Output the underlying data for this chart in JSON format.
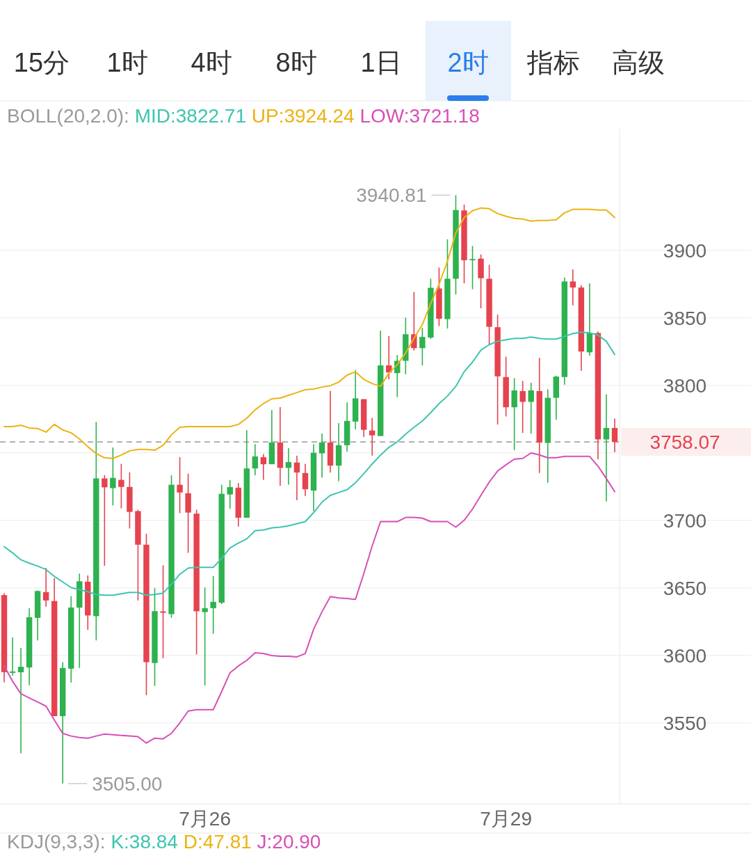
{
  "chart_data": {
    "type": "candlestick",
    "categories": [
      null,
      null,
      null,
      null,
      null,
      null,
      null,
      null,
      null,
      null,
      null,
      null,
      null,
      null,
      null,
      null,
      null,
      null,
      null,
      null,
      null,
      null,
      null,
      null,
      "7月26",
      null,
      null,
      null,
      null,
      null,
      null,
      null,
      null,
      null,
      null,
      null,
      null,
      null,
      null,
      null,
      null,
      null,
      null,
      null,
      null,
      null,
      null,
      null,
      null,
      null,
      null,
      null,
      null,
      null,
      null,
      null,
      null,
      null,
      null,
      null,
      "7月29",
      null,
      null,
      null,
      null,
      null,
      null,
      null,
      null,
      null,
      null,
      null,
      null,
      null
    ],
    "ohlc": [
      [
        3644.6,
        3646,
        3580,
        3587.5
      ],
      [
        3587,
        3613.2,
        3585,
        3588
      ],
      [
        3587.4,
        3605.4,
        3527.4,
        3591.5
      ],
      [
        3591,
        3634.9,
        3577.7,
        3628.2
      ],
      [
        3627.7,
        3648,
        3611,
        3647.6
      ],
      [
        3646.8,
        3664.7,
        3636,
        3640.6
      ],
      [
        3640.2,
        3657.1,
        3554.9,
        3554.9
      ],
      [
        3554.9,
        3594.9,
        3505,
        3590.6
      ],
      [
        3590.1,
        3643.8,
        3579.8,
        3635.4
      ],
      [
        3635.3,
        3660.5,
        3590.6,
        3654.8
      ],
      [
        3654.5,
        3659.2,
        3618.8,
        3629.5
      ],
      [
        3629,
        3772.8,
        3611,
        3731
      ],
      [
        3731,
        3733.5,
        3666.3,
        3724.4
      ],
      [
        3723.8,
        3753.9,
        3711,
        3731.4
      ],
      [
        3729.9,
        3741.8,
        3708.8,
        3724.7
      ],
      [
        3724.7,
        3735.5,
        3693.9,
        3706.2
      ],
      [
        3706.8,
        3707.8,
        3640.6,
        3681.9
      ],
      [
        3681.9,
        3690,
        3570.5,
        3594.9
      ],
      [
        3594.3,
        3649.7,
        3577.4,
        3632.7
      ],
      [
        3632.5,
        3666.7,
        3597.8,
        3631.5
      ],
      [
        3630.5,
        3733.3,
        3627.8,
        3726.3
      ],
      [
        3726.3,
        3746.8,
        3705.3,
        3720.6
      ],
      [
        3720,
        3734.5,
        3675.9,
        3705.7
      ],
      [
        3704.9,
        3707.8,
        3600.6,
        3632.6
      ],
      [
        3632,
        3650.2,
        3577.7,
        3634.9
      ],
      [
        3634.9,
        3658.7,
        3616,
        3639.6
      ],
      [
        3639,
        3726.3,
        3638,
        3719.6
      ],
      [
        3719.1,
        3729.8,
        3708.5,
        3724.6
      ],
      [
        3724.1,
        3727.6,
        3695.3,
        3701.9
      ],
      [
        3701.9,
        3766.7,
        3701.9,
        3738.4
      ],
      [
        3738.4,
        3756.4,
        3733.3,
        3747.3
      ],
      [
        3746.7,
        3749,
        3729.9,
        3741.5
      ],
      [
        3741.5,
        3781.6,
        3741.5,
        3757.6
      ],
      [
        3757.6,
        3783.8,
        3725.6,
        3738.8
      ],
      [
        3738.8,
        3753.4,
        3726.4,
        3743.1
      ],
      [
        3742.8,
        3747.9,
        3714.9,
        3735.4
      ],
      [
        3735,
        3741.8,
        3718,
        3723
      ],
      [
        3722,
        3756.4,
        3706.7,
        3750
      ],
      [
        3749.6,
        3764.2,
        3731.6,
        3757.6
      ],
      [
        3757.6,
        3795.8,
        3735.4,
        3740.5
      ],
      [
        3740.5,
        3771.9,
        3728.9,
        3755.6
      ],
      [
        3755.6,
        3787.3,
        3750.8,
        3773.6
      ],
      [
        3773.1,
        3811.2,
        3767.5,
        3790.3
      ],
      [
        3789.7,
        3789.7,
        3761.6,
        3767
      ],
      [
        3766.5,
        3775.8,
        3747.9,
        3762.9
      ],
      [
        3762.4,
        3840.4,
        3762.4,
        3814.7
      ],
      [
        3814.7,
        3836.4,
        3804.4,
        3809.5
      ],
      [
        3809,
        3822.4,
        3791.2,
        3818.1
      ],
      [
        3818.1,
        3850.1,
        3808.2,
        3837.8
      ],
      [
        3837.8,
        3869,
        3825.8,
        3827.5
      ],
      [
        3827.5,
        3842.6,
        3814.7,
        3835.8
      ],
      [
        3835.3,
        3878.9,
        3834.4,
        3872.2
      ],
      [
        3871.7,
        3887.2,
        3843.8,
        3849.3
      ],
      [
        3849,
        3908.1,
        3842,
        3878.9
      ],
      [
        3878.9,
        3940.81,
        3867.3,
        3929.8
      ],
      [
        3929.5,
        3933.8,
        3875.5,
        3892.6
      ],
      [
        3892.6,
        3903.2,
        3871.2,
        3893.5
      ],
      [
        3893.8,
        3896.9,
        3857,
        3879.3
      ],
      [
        3878.9,
        3889.2,
        3830,
        3843.3
      ],
      [
        3843,
        3852.3,
        3770.9,
        3806.6
      ],
      [
        3806.1,
        3821.1,
        3776.9,
        3783.7
      ],
      [
        3783.7,
        3805.3,
        3752,
        3796.2
      ],
      [
        3795.7,
        3803.2,
        3764.7,
        3787.7
      ],
      [
        3787.7,
        3801.8,
        3764.2,
        3796.2
      ],
      [
        3795.7,
        3820.3,
        3735,
        3757.6
      ],
      [
        3757.3,
        3797,
        3727.8,
        3790.7
      ],
      [
        3790.7,
        3807,
        3774.4,
        3806.4
      ],
      [
        3806.1,
        3879.8,
        3800.5,
        3876.9
      ],
      [
        3876.9,
        3885.8,
        3859.2,
        3872.4
      ],
      [
        3872.4,
        3874.1,
        3810.7,
        3825
      ],
      [
        3824.4,
        3875.5,
        3822,
        3838.7
      ],
      [
        3838.7,
        3839.9,
        3745.3,
        3759.9
      ],
      [
        3759.9,
        3793.2,
        3714,
        3768.4
      ],
      [
        3768.4,
        3775.3,
        3750.5,
        3758.07
      ]
    ],
    "colors": [
      "#e5434f",
      "#2eb24f",
      "#2eb24f",
      "#2eb24f",
      "#2eb24f",
      "#e5434f",
      "#e5434f",
      "#2eb24f",
      "#2eb24f",
      "#2eb24f",
      "#e5434f",
      "#2eb24f",
      "#e5434f",
      "#2eb24f",
      "#e5434f",
      "#e5434f",
      "#e5434f",
      "#e5434f",
      "#2eb24f",
      "#e5434f",
      "#2eb24f",
      "#e5434f",
      "#e5434f",
      "#e5434f",
      "#2eb24f",
      "#2eb24f",
      "#2eb24f",
      "#2eb24f",
      "#e5434f",
      "#2eb24f",
      "#2eb24f",
      "#e5434f",
      "#2eb24f",
      "#e5434f",
      "#2eb24f",
      "#e5434f",
      "#e5434f",
      "#2eb24f",
      "#2eb24f",
      "#e5434f",
      "#2eb24f",
      "#2eb24f",
      "#2eb24f",
      "#e5434f",
      "#e5434f",
      "#2eb24f",
      "#e5434f",
      "#2eb24f",
      "#2eb24f",
      "#e5434f",
      "#2eb24f",
      "#2eb24f",
      "#e5434f",
      "#2eb24f",
      "#2eb24f",
      "#e5434f",
      "#2eb24f",
      "#e5434f",
      "#e5434f",
      "#e5434f",
      "#e5434f",
      "#2eb24f",
      "#e5434f",
      "#2eb24f",
      "#e5434f",
      "#2eb24f",
      "#2eb24f",
      "#2eb24f",
      "#e5434f",
      "#e5434f",
      "#2eb24f",
      "#e5434f",
      "#2eb24f",
      "#e5434f"
    ],
    "series": [
      {
        "name": "MID:3822.71",
        "type": "line",
        "color": "#3cc5b0",
        "values": [
          3680.5,
          3675.9,
          3670.7,
          3668.2,
          3666.1,
          3663.5,
          3658.4,
          3654.3,
          3650.2,
          3648.6,
          3647.1,
          3645.0,
          3644.5,
          3644.5,
          3645.5,
          3646.6,
          3646.6,
          3644.5,
          3645.0,
          3646.1,
          3652.7,
          3660.0,
          3664.6,
          3665.1,
          3665.1,
          3665.1,
          3671.8,
          3679.5,
          3683.1,
          3686.2,
          3692.3,
          3692.8,
          3694.4,
          3694.9,
          3695.9,
          3697.5,
          3699.0,
          3705.7,
          3713.4,
          3718.5,
          3720.6,
          3722.6,
          3727.8,
          3734.5,
          3741.7,
          3748.3,
          3754.0,
          3758.1,
          3763.8,
          3768.9,
          3773.5,
          3779.7,
          3786.4,
          3792.0,
          3799.2,
          3810.0,
          3817.2,
          3826.0,
          3830.1,
          3832.6,
          3833.7,
          3834.7,
          3834.7,
          3835.7,
          3834.7,
          3834.2,
          3834.2,
          3836.2,
          3838.3,
          3839.3,
          3838.8,
          3837.2,
          3832.6,
          3822.71
        ]
      },
      {
        "name": "UP:3924.24",
        "type": "line",
        "color": "#ecb312",
        "values": [
          3769.4,
          3769.4,
          3770.4,
          3768.4,
          3767.9,
          3765.3,
          3771.0,
          3766.9,
          3764.8,
          3760.2,
          3754.5,
          3749.4,
          3746.3,
          3745.8,
          3748.3,
          3751.4,
          3752.5,
          3752.5,
          3751.9,
          3755.5,
          3763.3,
          3768.9,
          3769.4,
          3769.4,
          3769.4,
          3769.4,
          3769.4,
          3769.4,
          3771.0,
          3775.6,
          3781.8,
          3786.4,
          3790.0,
          3790.5,
          3792.6,
          3794.6,
          3796.7,
          3797.2,
          3798.7,
          3799.7,
          3802.3,
          3807.5,
          3810.0,
          3804.4,
          3801.3,
          3799.2,
          3809.0,
          3815.2,
          3823.9,
          3834.7,
          3845.0,
          3860.4,
          3874.8,
          3891.8,
          3912.8,
          3924.1,
          3929.3,
          3931.3,
          3930.8,
          3927.2,
          3925.2,
          3923.6,
          3923.1,
          3921.6,
          3922.1,
          3922.1,
          3922.6,
          3927.7,
          3930.3,
          3930.3,
          3930.3,
          3929.8,
          3929.8,
          3924.24
        ]
      },
      {
        "name": "LOW:3721.18",
        "type": "line",
        "color": "#d84fb6",
        "values": [
          3592.1,
          3580.8,
          3571.5,
          3568.4,
          3565.4,
          3562.3,
          3552.0,
          3542.2,
          3540.2,
          3539.1,
          3538.6,
          3540.2,
          3541.7,
          3541.2,
          3540.7,
          3540.2,
          3539.7,
          3535.0,
          3538.6,
          3538.1,
          3542.2,
          3549.9,
          3558.7,
          3559.7,
          3559.7,
          3559.7,
          3573.1,
          3587.0,
          3592.1,
          3596.2,
          3601.9,
          3601.3,
          3599.8,
          3599.3,
          3599.3,
          3598.8,
          3601.3,
          3619.3,
          3632.2,
          3643.5,
          3642.5,
          3642.0,
          3641.4,
          3660.5,
          3681.0,
          3699.0,
          3699.0,
          3699.0,
          3702.1,
          3702.1,
          3701.6,
          3699.0,
          3699.0,
          3699.0,
          3694.9,
          3700.0,
          3708.3,
          3718.5,
          3728.3,
          3736.5,
          3741.1,
          3745.3,
          3745.8,
          3749.9,
          3748.4,
          3746.3,
          3746.3,
          3747.3,
          3747.3,
          3747.3,
          3747.3,
          3740.1,
          3730.9,
          3721.18
        ]
      }
    ],
    "legend_title": "BOLL(20,2.0):",
    "legend": "top",
    "ylim": [
      3490,
      3990
    ],
    "yticks": [
      3550,
      3600,
      3650,
      3700,
      {
        "value": 3750,
        "label": null
      },
      3800,
      3850,
      3900
    ],
    "grid": "y",
    "ref_lines": [
      {
        "axis": "y",
        "value": 3758.07,
        "label": "3758.07",
        "color": "#999999",
        "line_style": "dashed"
      }
    ],
    "annotations": [
      "15分",
      "1时",
      "4时",
      "8时",
      "1日",
      "2时",
      "指标",
      "高级",
      "KDJ(9,3,3):",
      "K:38.84",
      "D:47.81",
      "J:20.90",
      "3940.81",
      "3505.00"
    ]
  }
}
